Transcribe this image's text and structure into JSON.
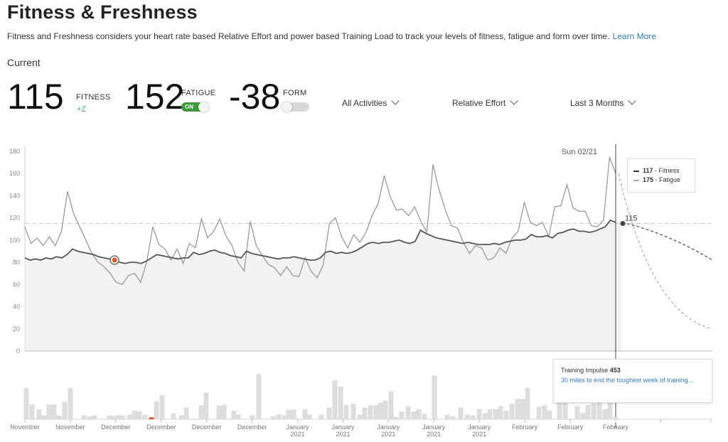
{
  "header": {
    "title": "Fitness & Freshness",
    "description": "Fitness and Freshness considers your heart rate based Relative Effort and power based Training Load to track your levels of fitness, fatigue and form over time.",
    "learn_more": "Learn More",
    "current_label": "Current"
  },
  "metrics": {
    "fitness": {
      "value": "115",
      "label": "FITNESS",
      "delta": "+Z"
    },
    "fatigue": {
      "value": "152",
      "label": "FATIGUE",
      "toggle": "ON",
      "toggle_state": "on"
    },
    "form": {
      "value": "-38",
      "label": "FORM",
      "toggle_state": "off"
    }
  },
  "filters": {
    "activities": "All Activities",
    "metric": "Relative Effort",
    "range": "Last 3 Months"
  },
  "colors": {
    "fitness_line": "#555555",
    "fatigue_line": "#999999",
    "area_fill": "#f2f2f2",
    "marker": "#e05a1c",
    "link": "#2a7fc0",
    "toggle_on": "#3a9a3a"
  },
  "chart_data": {
    "type": "line",
    "hover_date": "Sun 02/21",
    "ylim": [
      0,
      180
    ],
    "yticks": [
      0,
      20,
      40,
      60,
      80,
      100,
      120,
      140,
      160,
      180
    ],
    "current_fitness_label": "115",
    "reference_line": 115,
    "x_labels": [
      {
        "top": "November",
        "bottom": ""
      },
      {
        "top": "November",
        "bottom": ""
      },
      {
        "top": "December",
        "bottom": ""
      },
      {
        "top": "December",
        "bottom": ""
      },
      {
        "top": "December",
        "bottom": ""
      },
      {
        "top": "December",
        "bottom": ""
      },
      {
        "top": "January",
        "bottom": "2021"
      },
      {
        "top": "January",
        "bottom": "2021"
      },
      {
        "top": "January",
        "bottom": "2021"
      },
      {
        "top": "January",
        "bottom": "2021"
      },
      {
        "top": "January",
        "bottom": "2021"
      },
      {
        "top": "February",
        "bottom": ""
      },
      {
        "top": "February",
        "bottom": ""
      },
      {
        "top": "February",
        "bottom": ""
      }
    ],
    "series": [
      {
        "name": "Fitness",
        "hover_value": 117,
        "values": [
          84,
          82,
          83,
          82,
          84,
          83,
          85,
          84,
          87,
          92,
          90,
          89,
          88,
          87,
          85,
          84,
          83,
          82,
          80,
          79,
          80,
          80,
          79,
          81,
          84,
          87,
          86,
          85,
          84,
          83,
          84,
          84,
          89,
          87,
          88,
          90,
          91,
          89,
          88,
          86,
          85,
          84,
          90,
          88,
          87,
          86,
          85,
          84,
          83,
          84,
          84,
          85,
          84,
          83,
          82,
          82,
          84,
          89,
          90,
          88,
          89,
          88,
          89,
          91,
          94,
          97,
          98,
          97,
          98,
          98,
          99,
          100,
          98,
          97,
          99,
          109,
          106,
          104,
          102,
          101,
          100,
          99,
          98,
          97,
          98,
          97,
          96,
          96,
          96,
          97,
          96,
          98,
          99,
          100,
          100,
          101,
          105,
          103,
          103,
          104,
          102,
          106,
          107,
          109,
          110,
          108,
          108,
          107,
          108,
          110,
          112,
          118,
          116
        ]
      },
      {
        "name": "Fatigue",
        "hover_value": 175,
        "values": [
          112,
          97,
          102,
          95,
          103,
          95,
          108,
          144,
          124,
          112,
          100,
          88,
          80,
          76,
          70,
          62,
          60,
          68,
          70,
          62,
          80,
          112,
          96,
          92,
          82,
          92,
          79,
          97,
          93,
          119,
          102,
          108,
          119,
          104,
          95,
          80,
          72,
          117,
          95,
          86,
          78,
          75,
          68,
          76,
          68,
          67,
          84,
          72,
          66,
          78,
          115,
          120,
          103,
          93,
          105,
          98,
          107,
          122,
          133,
          158,
          139,
          127,
          128,
          122,
          130,
          117,
          107,
          168,
          145,
          128,
          113,
          111,
          98,
          88,
          95,
          93,
          82,
          84,
          93,
          88,
          102,
          108,
          134,
          116,
          113,
          116,
          103,
          130,
          131,
          150,
          129,
          126,
          126,
          113,
          112,
          118,
          175,
          160
        ]
      }
    ],
    "projection": {
      "fitness": [
        116,
        82
      ],
      "fatigue": [
        160,
        20
      ]
    },
    "highlight_point": {
      "series": "Fitness",
      "index": 17,
      "value": 82
    },
    "bars": {
      "name": "Training Impulse",
      "hover_value": 453,
      "hover_note": "30 miles to end the toughest week of training...",
      "values": [
        80,
        35,
        15,
        35,
        70,
        15,
        45,
        80,
        0,
        0,
        0,
        8,
        8,
        6,
        0,
        0,
        10,
        8,
        0,
        8,
        20,
        15,
        0,
        0,
        0,
        25,
        60,
        60,
        0,
        0,
        0,
        0,
        0,
        0,
        35,
        65,
        0,
        0,
        0,
        0,
        0,
        0,
        0,
        35,
        0,
        80,
        0,
        0,
        0,
        0,
        0,
        0,
        0,
        40,
        0,
        0,
        0,
        0,
        35,
        80,
        0,
        0,
        0,
        0,
        0,
        0,
        0,
        0,
        35,
        20,
        0,
        15,
        0,
        0,
        0,
        30,
        50,
        45,
        0,
        0,
        0,
        0,
        0,
        0,
        0,
        0,
        20,
        0,
        25,
        30,
        35,
        60,
        0,
        0,
        0,
        0,
        0,
        15,
        20,
        0,
        0,
        0,
        0,
        0,
        25,
        25,
        30,
        45,
        0,
        0,
        0,
        0,
        0,
        0,
        0,
        0,
        0,
        0,
        0,
        0,
        0,
        0,
        0,
        0,
        0,
        0,
        0,
        0,
        0,
        0,
        0,
        0,
        0,
        0,
        0,
        0,
        0,
        0,
        0,
        0,
        0,
        0,
        0,
        0,
        0,
        0,
        0,
        0,
        0,
        0,
        0,
        0,
        0,
        0,
        0,
        0,
        0,
        0,
        0,
        0,
        0,
        0,
        0,
        0
      ],
      "bars": [
        [
          37,
          80
        ],
        [
          45,
          38
        ],
        [
          55,
          25
        ],
        [
          62,
          10
        ],
        [
          69,
          38
        ],
        [
          76,
          38
        ],
        [
          83,
          10
        ],
        [
          91,
          45
        ],
        [
          99,
          80
        ],
        [
          118,
          10
        ],
        [
          126,
          8
        ],
        [
          133,
          10
        ],
        [
          154,
          10
        ],
        [
          160,
          8
        ],
        [
          166,
          10
        ],
        [
          172,
          10
        ],
        [
          182,
          12
        ],
        [
          189,
          22
        ],
        [
          196,
          20
        ],
        [
          204,
          12
        ],
        [
          213,
          5
        ],
        [
          220,
          46
        ],
        [
          228,
          62
        ],
        [
          244,
          15
        ],
        [
          255,
          10
        ],
        [
          262,
          30
        ],
        [
          283,
          35
        ],
        [
          290,
          68
        ],
        [
          308,
          35
        ],
        [
          315,
          38
        ],
        [
          329,
          22
        ],
        [
          335,
          12
        ],
        [
          355,
          10
        ],
        [
          364,
          116
        ],
        [
          384,
          8
        ],
        [
          392,
          12
        ],
        [
          400,
          10
        ],
        [
          406,
          24
        ],
        [
          413,
          25
        ],
        [
          429,
          26
        ],
        [
          435,
          12
        ],
        [
          452,
          12
        ],
        [
          463,
          30
        ],
        [
          471,
          100
        ],
        [
          479,
          84
        ],
        [
          487,
          36
        ],
        [
          497,
          40
        ],
        [
          506,
          12
        ],
        [
          513,
          30
        ],
        [
          521,
          36
        ],
        [
          529,
          36
        ],
        [
          535,
          42
        ],
        [
          542,
          48
        ],
        [
          550,
          72
        ],
        [
          557,
          6
        ],
        [
          565,
          20
        ],
        [
          574,
          34
        ],
        [
          582,
          20
        ],
        [
          589,
          26
        ],
        [
          597,
          14
        ],
        [
          611,
          112
        ],
        [
          629,
          12
        ],
        [
          637,
          8
        ],
        [
          648,
          30
        ],
        [
          657,
          12
        ],
        [
          665,
          10
        ],
        [
          674,
          26
        ],
        [
          682,
          16
        ],
        [
          689,
          26
        ],
        [
          697,
          26
        ],
        [
          704,
          34
        ],
        [
          712,
          22
        ],
        [
          720,
          40
        ],
        [
          728,
          52
        ],
        [
          735,
          52
        ],
        [
          742,
          80
        ],
        [
          758,
          32
        ],
        [
          766,
          36
        ],
        [
          773,
          22
        ],
        [
          787,
          56
        ],
        [
          795,
          76
        ],
        [
          812,
          34
        ],
        [
          820,
          16
        ],
        [
          827,
          36
        ],
        [
          835,
          40
        ],
        [
          843,
          46
        ],
        [
          851,
          26
        ],
        [
          858,
          96
        ],
        [
          866,
          6
        ]
      ],
      "highlight_index": 20
    }
  }
}
